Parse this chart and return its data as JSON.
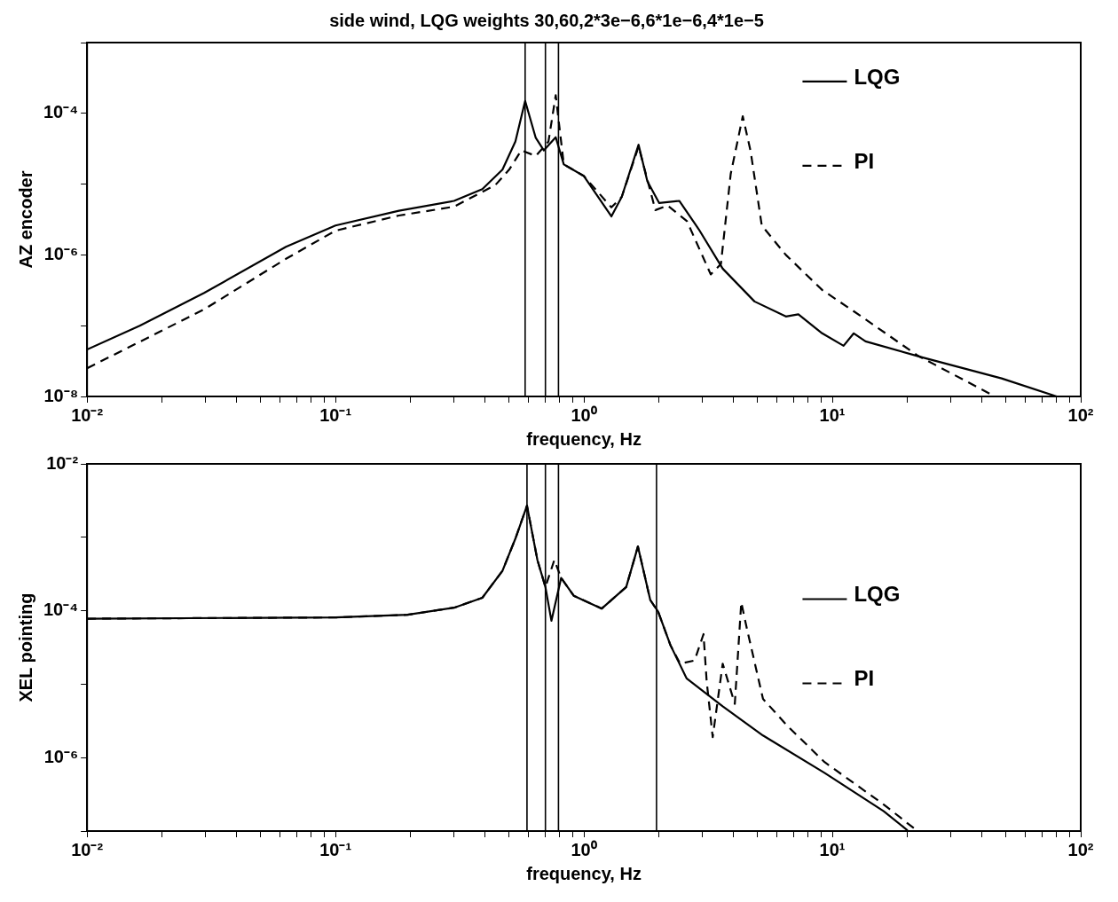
{
  "chart_data": [
    {
      "type": "line",
      "title": "side wind, LQG weights 30,60,2*3e−6,6*1e−6,4*1e−5",
      "xlabel": "frequency, Hz",
      "ylabel": "AZ encoder",
      "log": "xy",
      "legend": "top right",
      "marker": "none",
      "xlim": [
        0.01,
        100
      ],
      "ylim": [
        1e-08,
        0.001
      ],
      "xticks": [
        {
          "value": 0.01,
          "label": "10⁻²"
        },
        {
          "value": 0.02,
          "label": null
        },
        {
          "value": 0.03,
          "label": null
        },
        {
          "value": 0.04,
          "label": null
        },
        {
          "value": 0.05,
          "label": null
        },
        {
          "value": 0.06,
          "label": null
        },
        {
          "value": 0.07,
          "label": null
        },
        {
          "value": 0.08,
          "label": null
        },
        {
          "value": 0.09,
          "label": null
        },
        {
          "value": 0.1,
          "label": "10⁻¹"
        },
        {
          "value": 0.2,
          "label": null
        },
        {
          "value": 0.3,
          "label": null
        },
        {
          "value": 0.4,
          "label": null
        },
        {
          "value": 0.5,
          "label": null
        },
        {
          "value": 0.6,
          "label": null
        },
        {
          "value": 0.7,
          "label": null
        },
        {
          "value": 0.8,
          "label": null
        },
        {
          "value": 0.9,
          "label": null
        },
        {
          "value": 1,
          "label": "10⁰"
        },
        {
          "value": 2,
          "label": null
        },
        {
          "value": 3,
          "label": null
        },
        {
          "value": 4,
          "label": null
        },
        {
          "value": 5,
          "label": null
        },
        {
          "value": 6,
          "label": null
        },
        {
          "value": 7,
          "label": null
        },
        {
          "value": 8,
          "label": null
        },
        {
          "value": 9,
          "label": null
        },
        {
          "value": 10,
          "label": "10¹"
        },
        {
          "value": 20,
          "label": null
        },
        {
          "value": 30,
          "label": null
        },
        {
          "value": 40,
          "label": null
        },
        {
          "value": 50,
          "label": null
        },
        {
          "value": 60,
          "label": null
        },
        {
          "value": 70,
          "label": null
        },
        {
          "value": 80,
          "label": null
        },
        {
          "value": 90,
          "label": null
        },
        {
          "value": 100,
          "label": "10²"
        }
      ],
      "yticks": [
        {
          "value": 1e-08,
          "label": "10⁻⁸"
        },
        {
          "value": 1e-07,
          "label": null
        },
        {
          "value": 1e-06,
          "label": "10⁻⁶"
        },
        {
          "value": 1e-05,
          "label": null
        },
        {
          "value": 0.0001,
          "label": "10⁻⁴"
        },
        {
          "value": 0.001,
          "label": null
        }
      ],
      "ref_lines": [
        {
          "axis": "x",
          "value": 0.58,
          "color": "#000000"
        },
        {
          "axis": "x",
          "value": 0.7,
          "color": "#000000"
        },
        {
          "axis": "x",
          "value": 0.79,
          "color": "#000000"
        }
      ],
      "series": [
        {
          "name": "LQG",
          "color": "#000000",
          "line_style": "solid",
          "x": [
            0.01,
            0.0163,
            0.0296,
            0.0632,
            0.1,
            0.18,
            0.3,
            0.39,
            0.47,
            0.53,
            0.58,
            0.64,
            0.69,
            0.77,
            0.83,
            1.0,
            1.29,
            1.42,
            1.66,
            1.8,
            2.01,
            2.42,
            2.9,
            3.62,
            4.86,
            6.5,
            7.3,
            9.1,
            11.1,
            12.2,
            13.6,
            22.8,
            48,
            80
          ],
          "values": [
            4.6e-08,
            1e-07,
            2.9e-07,
            1.3e-06,
            2.6e-06,
            4.2e-06,
            5.8e-06,
            8.5e-06,
            1.6e-05,
            4e-05,
            0.00015,
            4.5e-05,
            3e-05,
            4.6e-05,
            1.9e-05,
            1.3e-05,
            3.5e-06,
            6.6e-06,
            3.6e-05,
            1.1e-05,
            5.4e-06,
            5.8e-06,
            2.3e-06,
            6.4e-07,
            2.2e-07,
            1.35e-07,
            1.45e-07,
            7.8e-08,
            5.2e-08,
            7.8e-08,
            6e-08,
            3.6e-08,
            1.8e-08,
            1e-08
          ]
        },
        {
          "name": "PI",
          "color": "#000000",
          "line_style": "dashed",
          "x": [
            0.01,
            0.0296,
            0.0632,
            0.1,
            0.18,
            0.3,
            0.44,
            0.5,
            0.56,
            0.64,
            0.72,
            0.77,
            0.83,
            1.0,
            1.29,
            1.42,
            1.66,
            1.94,
            2.17,
            2.6,
            3.24,
            3.56,
            3.9,
            4.36,
            4.69,
            5.2,
            6.5,
            9.1,
            13.1,
            22,
            44
          ],
          "values": [
            2.5e-08,
            1.7e-07,
            8.8e-07,
            2.2e-06,
            3.6e-06,
            4.8e-06,
            9.7e-06,
            1.6e-05,
            3e-05,
            2.5e-05,
            4e-05,
            0.00018,
            1.9e-05,
            1.3e-05,
            4.7e-06,
            6.6e-06,
            3.4e-05,
            4.3e-06,
            5e-06,
            3e-06,
            5.3e-07,
            7.4e-07,
            1.4e-05,
            9.1e-05,
            2.9e-05,
            2.6e-06,
            1e-06,
            3.2e-07,
            1.35e-07,
            3.8e-08,
            1.05e-08
          ]
        }
      ]
    },
    {
      "type": "line",
      "xlabel": "frequency, Hz",
      "ylabel": "XEL pointing",
      "log": "xy",
      "legend": "right",
      "marker": "none",
      "xlim": [
        0.01,
        100
      ],
      "ylim": [
        1e-07,
        0.01
      ],
      "xticks": [
        {
          "value": 0.01,
          "label": "10⁻²"
        },
        {
          "value": 0.02,
          "label": null
        },
        {
          "value": 0.03,
          "label": null
        },
        {
          "value": 0.04,
          "label": null
        },
        {
          "value": 0.05,
          "label": null
        },
        {
          "value": 0.06,
          "label": null
        },
        {
          "value": 0.07,
          "label": null
        },
        {
          "value": 0.08,
          "label": null
        },
        {
          "value": 0.09,
          "label": null
        },
        {
          "value": 0.1,
          "label": "10⁻¹"
        },
        {
          "value": 0.2,
          "label": null
        },
        {
          "value": 0.3,
          "label": null
        },
        {
          "value": 0.4,
          "label": null
        },
        {
          "value": 0.5,
          "label": null
        },
        {
          "value": 0.6,
          "label": null
        },
        {
          "value": 0.7,
          "label": null
        },
        {
          "value": 0.8,
          "label": null
        },
        {
          "value": 0.9,
          "label": null
        },
        {
          "value": 1,
          "label": "10⁰"
        },
        {
          "value": 2,
          "label": null
        },
        {
          "value": 3,
          "label": null
        },
        {
          "value": 4,
          "label": null
        },
        {
          "value": 5,
          "label": null
        },
        {
          "value": 6,
          "label": null
        },
        {
          "value": 7,
          "label": null
        },
        {
          "value": 8,
          "label": null
        },
        {
          "value": 9,
          "label": null
        },
        {
          "value": 10,
          "label": "10¹"
        },
        {
          "value": 20,
          "label": null
        },
        {
          "value": 30,
          "label": null
        },
        {
          "value": 40,
          "label": null
        },
        {
          "value": 50,
          "label": null
        },
        {
          "value": 60,
          "label": null
        },
        {
          "value": 70,
          "label": null
        },
        {
          "value": 80,
          "label": null
        },
        {
          "value": 90,
          "label": null
        },
        {
          "value": 100,
          "label": "10²"
        }
      ],
      "yticks": [
        {
          "value": 1e-07,
          "label": null
        },
        {
          "value": 1e-06,
          "label": "10⁻⁶"
        },
        {
          "value": 1e-05,
          "label": null
        },
        {
          "value": 0.0001,
          "label": "10⁻⁴"
        },
        {
          "value": 0.001,
          "label": null
        },
        {
          "value": 0.01,
          "label": "10⁻²"
        }
      ],
      "ref_lines": [
        {
          "axis": "x",
          "value": 0.59,
          "color": "#000000"
        },
        {
          "axis": "x",
          "value": 0.7,
          "color": "#000000"
        },
        {
          "axis": "x",
          "value": 0.79,
          "color": "#000000"
        },
        {
          "axis": "x",
          "value": 1.96,
          "color": "#000000"
        }
      ],
      "series": [
        {
          "name": "LQG",
          "color": "#000000",
          "line_style": "solid",
          "x": [
            0.01,
            0.1,
            0.195,
            0.3,
            0.39,
            0.47,
            0.53,
            0.59,
            0.65,
            0.7,
            0.74,
            0.81,
            0.91,
            1.18,
            1.48,
            1.65,
            1.85,
            1.99,
            2.23,
            2.59,
            3.62,
            5.26,
            9.3,
            16.1,
            20.1
          ],
          "values": [
            7.8e-05,
            8.1e-05,
            8.8e-05,
            0.00011,
            0.00015,
            0.00035,
            0.00096,
            0.0027,
            0.00049,
            0.00021,
            7.3e-05,
            0.00028,
            0.00016,
            0.000107,
            0.00021,
            0.00075,
            0.00014,
            9.7e-05,
            3.4e-05,
            1.2e-05,
            5e-06,
            2e-06,
            6.2e-07,
            1.86e-07,
            1.02e-07
          ]
        },
        {
          "name": "PI",
          "color": "#000000",
          "line_style": "dashed",
          "x": [
            0.01,
            0.1,
            0.195,
            0.3,
            0.39,
            0.47,
            0.53,
            0.59,
            0.65,
            0.7,
            0.76,
            0.81,
            0.91,
            1.18,
            1.48,
            1.65,
            1.85,
            1.99,
            2.23,
            2.44,
            2.79,
            3.03,
            3.12,
            3.3,
            3.62,
            4.05,
            4.3,
            4.52,
            5.26,
            6.6,
            9.3,
            16.1,
            21.7
          ],
          "values": [
            7.8e-05,
            8.1e-05,
            8.8e-05,
            0.00011,
            0.00015,
            0.00035,
            0.00096,
            0.0027,
            0.00049,
            0.00021,
            0.00049,
            0.00028,
            0.00016,
            0.000107,
            0.00021,
            0.00075,
            0.00014,
            9.7e-05,
            3.4e-05,
            1.9e-05,
            2.1e-05,
            4.8e-05,
            1.1e-05,
            1.9e-06,
            1.9e-05,
            5.4e-06,
            0.00013,
            5.9e-05,
            6.3e-06,
            2.7e-06,
            8.7e-07,
            2.3e-07,
            1.04e-07
          ]
        }
      ]
    }
  ]
}
